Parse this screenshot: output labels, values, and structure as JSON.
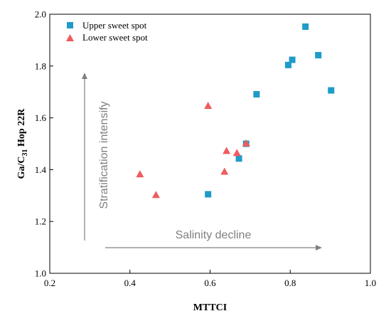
{
  "chart_data": {
    "type": "scatter",
    "xlabel": "MTTCI",
    "ylabel": {
      "prefix": "Ga/C",
      "sub": "31",
      "suffix": " Hop 22R"
    },
    "xlim": [
      0.2,
      1.0
    ],
    "ylim": [
      1.0,
      2.0
    ],
    "x_ticks": [
      "0.2",
      "0.4",
      "0.6",
      "0.8",
      "1.0"
    ],
    "y_ticks": [
      "1.0",
      "1.2",
      "1.4",
      "1.6",
      "1.8",
      "2.0"
    ],
    "grid": false,
    "legend_position": "top-left",
    "series": [
      {
        "name": "Upper sweet spot",
        "marker": "square",
        "color": "#1f9bc9",
        "points": [
          {
            "x": 0.595,
            "y": 1.305
          },
          {
            "x": 0.672,
            "y": 1.443
          },
          {
            "x": 0.69,
            "y": 1.5
          },
          {
            "x": 0.716,
            "y": 1.691
          },
          {
            "x": 0.795,
            "y": 1.804
          },
          {
            "x": 0.805,
            "y": 1.824
          },
          {
            "x": 0.838,
            "y": 1.952
          },
          {
            "x": 0.87,
            "y": 1.842
          },
          {
            "x": 0.902,
            "y": 1.706
          }
        ]
      },
      {
        "name": "Lower sweet spot",
        "marker": "triangle",
        "color": "#ef5b5e",
        "points": [
          {
            "x": 0.425,
            "y": 1.383
          },
          {
            "x": 0.465,
            "y": 1.303
          },
          {
            "x": 0.595,
            "y": 1.647
          },
          {
            "x": 0.636,
            "y": 1.393
          },
          {
            "x": 0.641,
            "y": 1.473
          },
          {
            "x": 0.667,
            "y": 1.465
          },
          {
            "x": 0.69,
            "y": 1.502
          }
        ]
      }
    ],
    "annotations": {
      "vertical_text": "Stratification intensify",
      "horizontal_text": "Salinity decline",
      "arrow_color": "#808080"
    }
  }
}
